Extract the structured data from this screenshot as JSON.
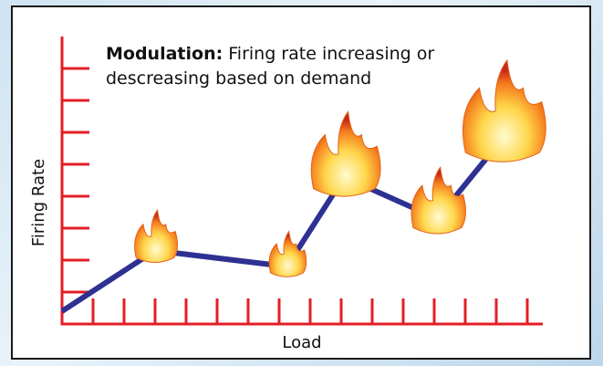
{
  "chart_data": {
    "type": "line",
    "annotation_label": "Modulation:",
    "annotation": "Firing rate increasing or descreasing based on demand",
    "x_label": "Load",
    "y_label": "Firing Rate",
    "x": [
      0,
      3,
      7.25,
      9.1,
      12.1,
      14.2
    ],
    "series": [
      {
        "color": "#2e3192",
        "values": [
          0.4,
          2.3,
          1.8,
          4.6,
          3.3,
          5.8
        ]
      }
    ],
    "xlim": [
      0,
      15.5
    ],
    "ylim": [
      0,
      9
    ],
    "xticks": [
      1,
      2,
      3,
      4,
      5,
      6,
      7,
      8,
      9,
      10,
      11,
      12,
      13,
      14,
      15
    ],
    "yticks": [
      1,
      2,
      3,
      4,
      5,
      6,
      7,
      8
    ],
    "axis_color": "#e41e26"
  }
}
